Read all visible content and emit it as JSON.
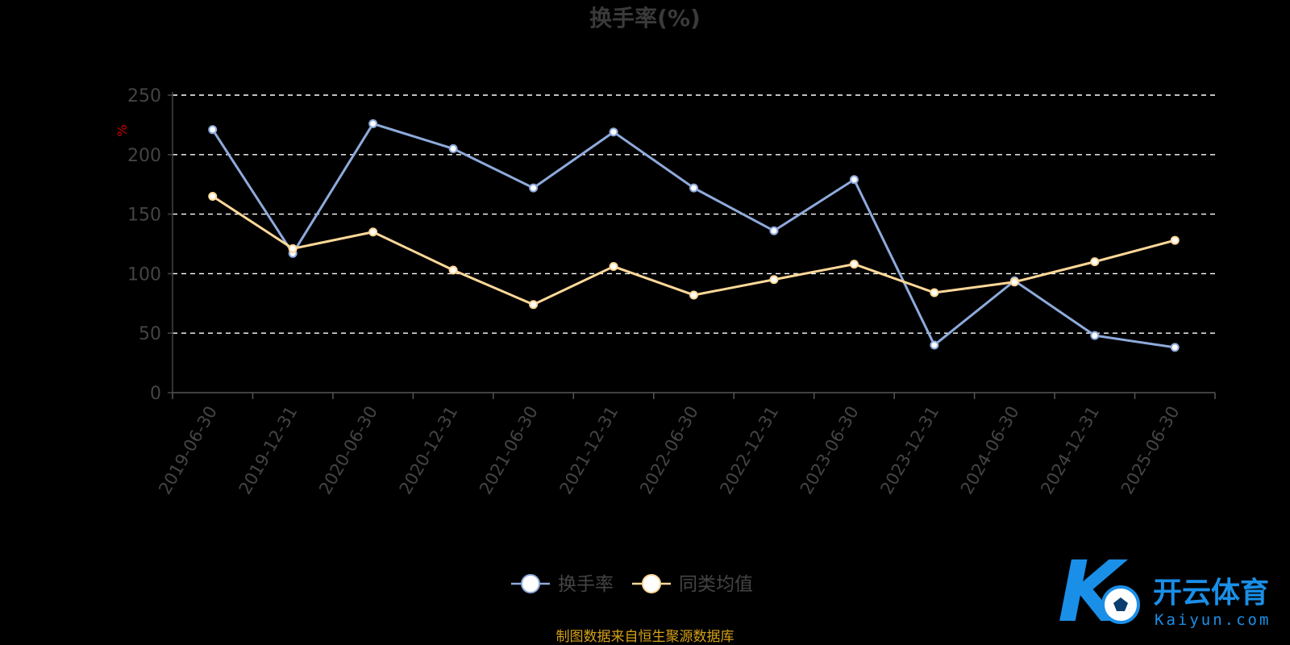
{
  "chart_data": {
    "type": "line",
    "title": "换手率(%)",
    "ylabel": "%",
    "ylim": [
      0,
      250
    ],
    "yticks": [
      0,
      50,
      100,
      150,
      200,
      250
    ],
    "grid": true,
    "legend_position": "bottom-center",
    "categories": [
      "2019-06-30",
      "2019-12-31",
      "2020-06-30",
      "2020-12-31",
      "2021-06-30",
      "2021-12-31",
      "2022-06-30",
      "2022-12-31",
      "2023-06-30",
      "2023-12-31",
      "2024-06-30",
      "2024-12-31",
      "2025-06-30"
    ],
    "series": [
      {
        "name": "换手率",
        "color": "#8eaadb",
        "values": [
          221,
          117,
          226,
          205,
          172,
          219,
          172,
          136,
          179,
          40,
          94,
          48,
          38
        ]
      },
      {
        "name": "同类均值",
        "color": "#ffd899",
        "values": [
          165,
          121,
          135,
          103,
          74,
          106,
          82,
          95,
          108,
          84,
          93,
          110,
          128
        ]
      }
    ]
  },
  "colors": {
    "title": "#3a3a3a",
    "axis_text": "#444444",
    "grid": "#ffffff",
    "unit": "#cc0000",
    "source": "#d4a017",
    "logo_blue": "#1a8fe8"
  },
  "footer": {
    "source": "制图数据来自恒生聚源数据库"
  },
  "logo": {
    "cn": "开云体育",
    "en": "Kaiyun.com",
    "mark": "K"
  }
}
